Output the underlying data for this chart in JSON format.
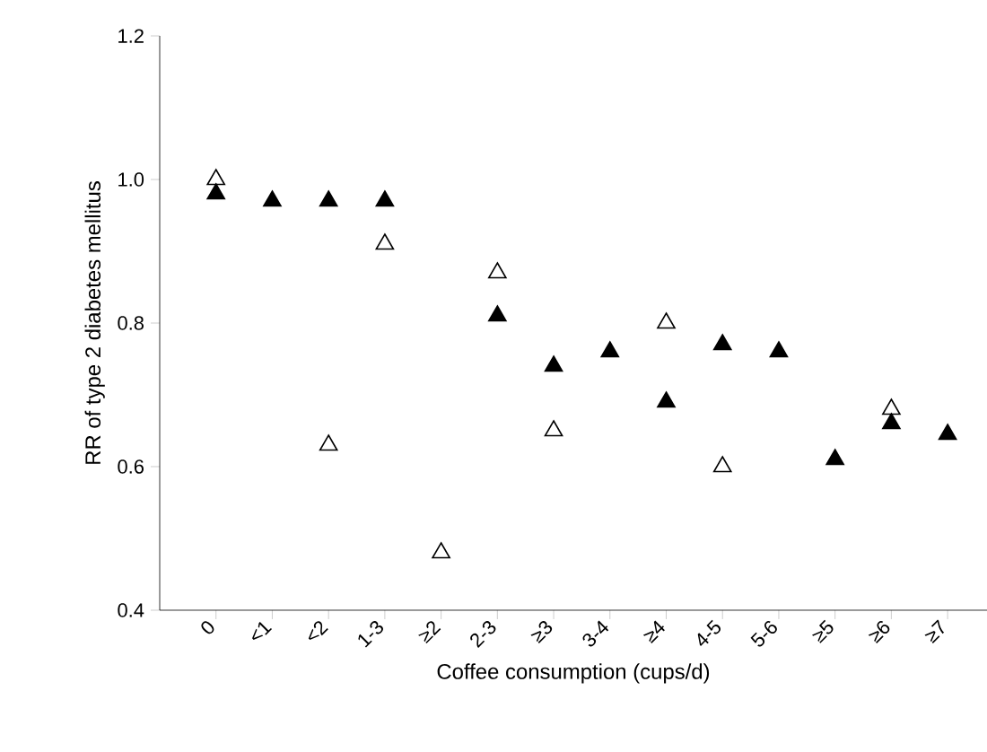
{
  "chart_data": {
    "type": "scatter",
    "xlabel": "Coffee consumption (cups/d)",
    "ylabel": "RR of type 2 diabetes mellitus",
    "categories": [
      "0",
      "<1",
      "<2",
      "1-3",
      "≥2",
      "2-3",
      "≥3",
      "3-4",
      "≥4",
      "4-5",
      "5-6",
      "≥5",
      "≥6",
      "≥7"
    ],
    "series": [
      {
        "color": "#000000",
        "values": [
          0.98,
          0.97,
          0.97,
          0.97,
          null,
          0.81,
          0.74,
          0.76,
          0.69,
          0.77,
          0.76,
          0.61,
          0.66,
          0.645
        ]
      },
      {
        "color": "#000000",
        "values": [
          1.0,
          null,
          0.63,
          0.91,
          0.48,
          0.87,
          0.65,
          null,
          0.8,
          0.6,
          null,
          null,
          0.68,
          null
        ]
      }
    ],
    "marker": "triangle",
    "ylim": [
      0.4,
      1.2
    ],
    "yticks": [
      {
        "value": 0.4,
        "label": "0.4"
      },
      {
        "value": 0.6,
        "label": "0.6"
      },
      {
        "value": 0.8,
        "label": "0.8"
      },
      {
        "value": 1.0,
        "label": "1.0"
      },
      {
        "value": 1.2,
        "label": "1.2"
      }
    ],
    "grid": false
  }
}
